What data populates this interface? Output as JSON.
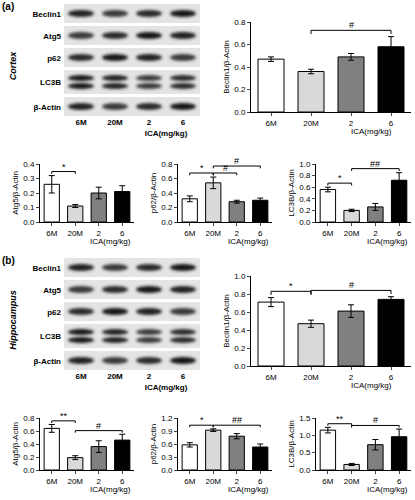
{
  "panels": [
    {
      "label": "(a)",
      "region": "Cortex",
      "blot": {
        "rows": [
          "Beclin1",
          "Atg5",
          "p62",
          "LC3B",
          "β-Actin"
        ],
        "lanes": [
          "6M",
          "20M",
          "2",
          "6"
        ],
        "lane_group_label": "ICA(mg/kg)"
      }
    },
    {
      "label": "(b)",
      "region": "Hippocampus",
      "blot": {
        "rows": [
          "Beclin1",
          "Atg5",
          "p62",
          "LC3B",
          "β-Actin"
        ],
        "lanes": [
          "6M",
          "20M",
          "2",
          "6"
        ],
        "lane_group_label": "ICA(mg/kg)"
      }
    }
  ],
  "chart_data": [
    {
      "type": "bar",
      "y_label": "Beclin1/β-Actin",
      "x_label": "ICA(mg/kg)",
      "categories": [
        "6M",
        "20M",
        "2",
        "6"
      ],
      "values": [
        0.47,
        0.36,
        0.49,
        0.58
      ],
      "errors": [
        0.02,
        0.02,
        0.03,
        0.09
      ],
      "colors": [
        "#ffffff",
        "#d9d9d9",
        "#808080",
        "#000000"
      ],
      "ylim": [
        0,
        0.8
      ],
      "yticks": [
        {
          "value": 0,
          "label": "0.0"
        },
        0.2,
        0.4,
        0.6,
        0.8
      ],
      "annotations": [
        {
          "text": "#",
          "between": [
            "20M",
            "6"
          ]
        }
      ]
    },
    {
      "type": "bar",
      "y_label": "Atg5/β-Actin",
      "x_label": "ICA(mg/kg)",
      "categories": [
        "6M",
        "20M",
        "2",
        "6"
      ],
      "values": [
        0.26,
        0.11,
        0.2,
        0.21
      ],
      "errors": [
        0.06,
        0.01,
        0.04,
        0.04
      ],
      "colors": [
        "#ffffff",
        "#d9d9d9",
        "#808080",
        "#000000"
      ],
      "ylim": [
        0,
        0.4
      ],
      "yticks": [
        {
          "value": 0,
          "label": "0.0"
        },
        0.1,
        0.2,
        0.3,
        0.4
      ],
      "annotations": [
        {
          "text": "*",
          "between": [
            "6M",
            "20M"
          ]
        }
      ]
    },
    {
      "type": "bar",
      "y_label": "p62/β-Actin",
      "x_label": "ICA(mg/kg)",
      "categories": [
        "6M",
        "20M",
        "2",
        "6"
      ],
      "values": [
        0.32,
        0.54,
        0.28,
        0.3
      ],
      "errors": [
        0.04,
        0.08,
        0.02,
        0.03
      ],
      "colors": [
        "#ffffff",
        "#d9d9d9",
        "#808080",
        "#000000"
      ],
      "ylim": [
        0,
        0.8
      ],
      "yticks": [
        {
          "value": 0,
          "label": "0.0"
        },
        0.2,
        0.4,
        0.6,
        0.8
      ],
      "annotations": [
        {
          "text": "*",
          "between": [
            "6M",
            "20M"
          ]
        },
        {
          "text": "#",
          "between": [
            "20M",
            "2"
          ]
        },
        {
          "text": "#",
          "between": [
            "20M",
            "6"
          ]
        }
      ]
    },
    {
      "type": "bar",
      "y_label": "LC3B/β-Actin",
      "x_label": "ICA(mg/kg)",
      "categories": [
        "6M",
        "20M",
        "2",
        "6"
      ],
      "values": [
        0.56,
        0.2,
        0.26,
        0.72
      ],
      "errors": [
        0.04,
        0.02,
        0.06,
        0.13
      ],
      "colors": [
        "#ffffff",
        "#d9d9d9",
        "#808080",
        "#000000"
      ],
      "ylim": [
        0,
        1.0
      ],
      "yticks": [
        {
          "value": 0,
          "label": "0.0"
        },
        0.2,
        0.4,
        0.6,
        0.8,
        {
          "value": 1,
          "label": "1.0"
        }
      ],
      "annotations": [
        {
          "text": "*",
          "between": [
            "6M",
            "20M"
          ]
        },
        {
          "text": "##",
          "between": [
            "20M",
            "6"
          ]
        }
      ]
    },
    {
      "type": "bar",
      "y_label": "Beclin1/β-Actin",
      "x_label": "ICA(mg/kg)",
      "categories": [
        "6M",
        "20M",
        "2",
        "6"
      ],
      "values": [
        0.71,
        0.47,
        0.61,
        0.74
      ],
      "errors": [
        0.05,
        0.04,
        0.07,
        0.03
      ],
      "colors": [
        "#ffffff",
        "#d9d9d9",
        "#808080",
        "#000000"
      ],
      "ylim": [
        0,
        1.0
      ],
      "yticks": [
        {
          "value": 0,
          "label": "0.0"
        },
        0.2,
        0.4,
        0.6,
        0.8,
        {
          "value": 1,
          "label": "1.0"
        }
      ],
      "annotations": [
        {
          "text": "*",
          "between": [
            "6M",
            "20M"
          ]
        },
        {
          "text": "#",
          "between": [
            "20M",
            "6"
          ]
        }
      ]
    },
    {
      "type": "bar",
      "y_label": "Atg5/β-Actin",
      "x_label": "ICA(mg/kg)",
      "categories": [
        "6M",
        "20M",
        "2",
        "6"
      ],
      "values": [
        0.64,
        0.19,
        0.36,
        0.46
      ],
      "errors": [
        0.06,
        0.03,
        0.09,
        0.09
      ],
      "colors": [
        "#ffffff",
        "#d9d9d9",
        "#808080",
        "#000000"
      ],
      "ylim": [
        0,
        0.8
      ],
      "yticks": [
        {
          "value": 0,
          "label": "0.0"
        },
        0.2,
        0.4,
        0.6,
        0.8
      ],
      "annotations": [
        {
          "text": "**",
          "between": [
            "6M",
            "20M"
          ]
        },
        {
          "text": "#",
          "between": [
            "20M",
            "6"
          ]
        }
      ]
    },
    {
      "type": "bar",
      "y_label": "p62/β-Actin",
      "x_label": "ICA(mg/kg)",
      "categories": [
        "6M",
        "20M",
        "2",
        "6"
      ],
      "values": [
        0.58,
        0.92,
        0.78,
        0.53
      ],
      "errors": [
        0.05,
        0.03,
        0.06,
        0.07
      ],
      "colors": [
        "#ffffff",
        "#d9d9d9",
        "#808080",
        "#000000"
      ],
      "ylim": [
        0,
        1.2
      ],
      "yticks": [
        {
          "value": 0,
          "label": "0.0"
        },
        0.3,
        0.6,
        0.9,
        1.2
      ],
      "annotations": [
        {
          "text": "*",
          "between": [
            "6M",
            "20M"
          ]
        },
        {
          "text": "##",
          "between": [
            "20M",
            "6"
          ]
        }
      ]
    },
    {
      "type": "bar",
      "y_label": "LC3B/β-Actin",
      "x_label": "ICA(mg/kg)",
      "categories": [
        "6M",
        "20M",
        "2",
        "6"
      ],
      "values": [
        1.15,
        0.16,
        0.73,
        0.96
      ],
      "errors": [
        0.08,
        0.03,
        0.15,
        0.22
      ],
      "colors": [
        "#ffffff",
        "#d9d9d9",
        "#808080",
        "#000000"
      ],
      "ylim": [
        0,
        1.5
      ],
      "yticks": [
        {
          "value": 0,
          "label": "0.0"
        },
        0.5,
        {
          "value": 1,
          "label": "1.0"
        },
        1.5
      ],
      "annotations": [
        {
          "text": "**",
          "between": [
            "6M",
            "20M"
          ]
        },
        {
          "text": "#",
          "between": [
            "20M",
            "6"
          ]
        }
      ]
    }
  ]
}
